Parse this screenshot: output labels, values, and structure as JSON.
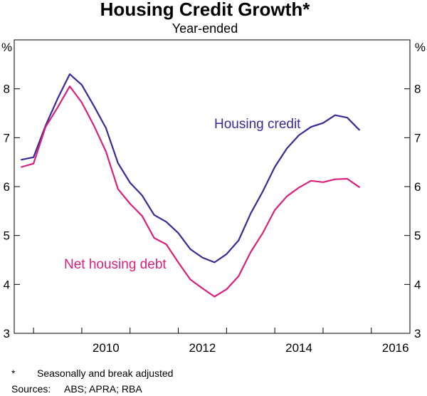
{
  "title": "Housing Credit Growth*",
  "subtitle": "Year-ended",
  "unit_label_left": "%",
  "unit_label_right": "%",
  "footnote": {
    "marker": "*",
    "text": "Seasonally and break adjusted"
  },
  "sources": {
    "label": "Sources:",
    "text": "ABS; APRA; RBA"
  },
  "colors": {
    "housing_credit": "#3a2a96",
    "net_housing_debt": "#d9207e"
  },
  "chart_data": {
    "type": "line",
    "title": "Housing Credit Growth*",
    "subtitle": "Year-ended",
    "xlabel": "",
    "ylabel": "%",
    "xlim": [
      2008.6,
      2016.8
    ],
    "ylim": [
      3,
      9
    ],
    "y_ticks": [
      3,
      4,
      5,
      6,
      7,
      8
    ],
    "x_ticks": [
      2010,
      2012,
      2014,
      2016
    ],
    "grid": false,
    "x": [
      2008.75,
      2009.0,
      2009.25,
      2009.5,
      2009.75,
      2010.0,
      2010.25,
      2010.5,
      2010.75,
      2011.0,
      2011.25,
      2011.5,
      2011.75,
      2012.0,
      2012.25,
      2012.5,
      2012.75,
      2013.0,
      2013.25,
      2013.5,
      2013.75,
      2014.0,
      2014.25,
      2014.5,
      2014.75,
      2015.0,
      2015.25,
      2015.5,
      2015.75
    ],
    "series": [
      {
        "name": "Housing credit",
        "color": "#3a2a96",
        "values": [
          6.55,
          6.6,
          7.25,
          7.8,
          8.3,
          8.08,
          7.65,
          7.2,
          6.48,
          6.08,
          5.82,
          5.42,
          5.28,
          5.05,
          4.72,
          4.55,
          4.45,
          4.62,
          4.9,
          5.45,
          5.9,
          6.4,
          6.78,
          7.05,
          7.22,
          7.3,
          7.46,
          7.41,
          7.16
        ]
      },
      {
        "name": "Net housing debt",
        "color": "#d9207e",
        "values": [
          6.4,
          6.47,
          7.22,
          7.62,
          8.05,
          7.72,
          7.25,
          6.72,
          5.95,
          5.65,
          5.4,
          4.95,
          4.82,
          4.45,
          4.1,
          3.92,
          3.75,
          3.9,
          4.17,
          4.66,
          5.05,
          5.52,
          5.8,
          5.98,
          6.12,
          6.09,
          6.15,
          6.16,
          5.99
        ]
      }
    ]
  }
}
